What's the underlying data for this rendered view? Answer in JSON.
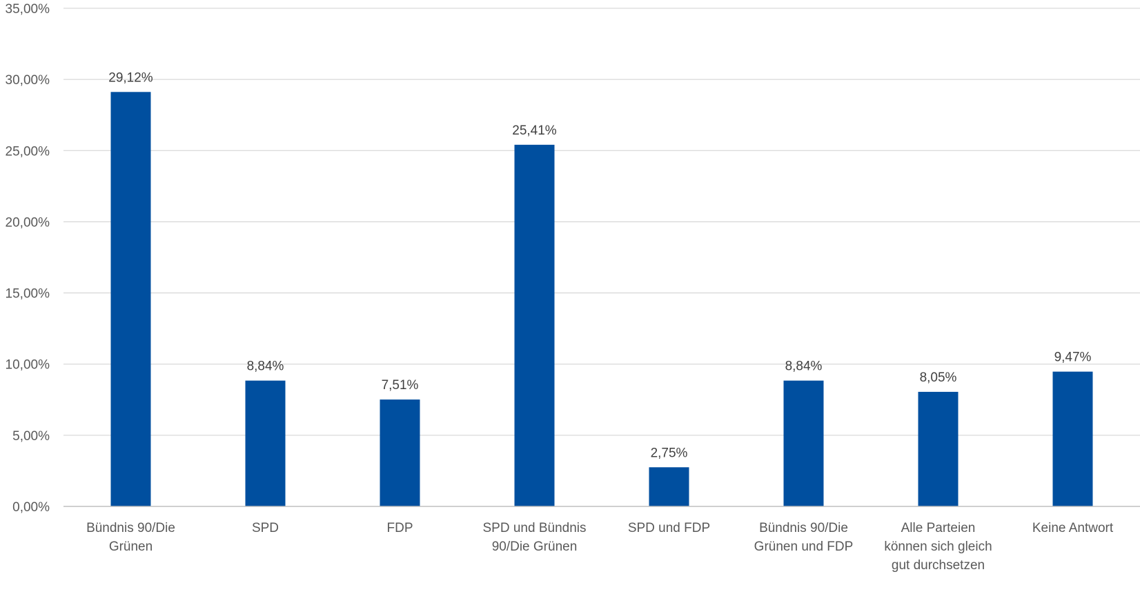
{
  "chart_data": {
    "type": "bar",
    "categories": [
      [
        "Bündnis 90/Die",
        "Grünen"
      ],
      [
        "SPD"
      ],
      [
        "FDP"
      ],
      [
        "SPD und Bündnis",
        "90/Die Grünen"
      ],
      [
        "SPD und FDP"
      ],
      [
        "Bündnis 90/Die",
        "Grünen und FDP"
      ],
      [
        "Alle Parteien",
        "können sich gleich",
        "gut durchsetzen"
      ],
      [
        "Keine Antwort"
      ]
    ],
    "values": [
      29.12,
      8.84,
      7.51,
      25.41,
      2.75,
      8.84,
      8.05,
      9.47
    ],
    "data_labels": [
      "29,12%",
      "8,84%",
      "7,51%",
      "25,41%",
      "2,75%",
      "8,84%",
      "8,05%",
      "9,47%"
    ],
    "ylim": [
      0,
      35
    ],
    "yticks": [
      0,
      5,
      10,
      15,
      20,
      25,
      30,
      35
    ],
    "ytick_labels": [
      "0,00%",
      "5,00%",
      "10,00%",
      "15,00%",
      "20,00%",
      "25,00%",
      "30,00%",
      "35,00%"
    ],
    "grid": true,
    "bar_color": "#004f9f",
    "title": "",
    "xlabel": "",
    "ylabel": ""
  }
}
